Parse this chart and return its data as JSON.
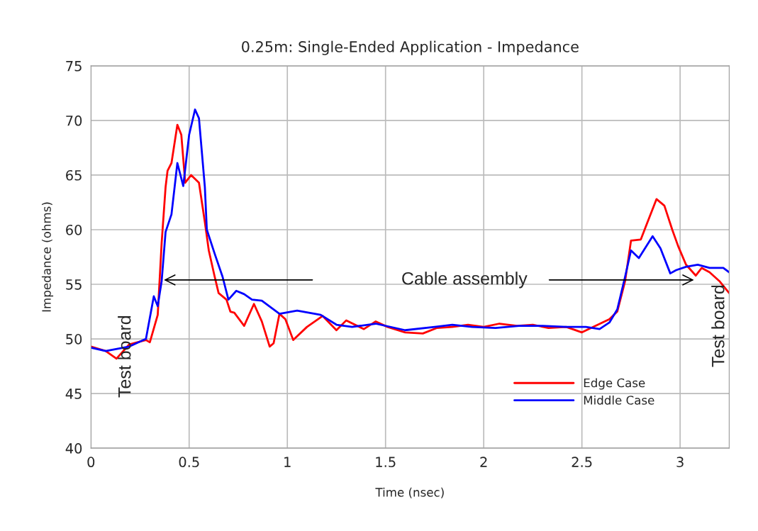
{
  "chart_data": {
    "type": "line",
    "title": "0.25m: Single-Ended Application - Impedance",
    "xlabel": "Time (nsec)",
    "ylabel": "Impedance (ohms)",
    "xlim": [
      0,
      3.25
    ],
    "xticks": [
      0,
      0.5,
      1,
      1.5,
      2,
      2.5,
      3
    ],
    "ylim": [
      40,
      75
    ],
    "yticks": [
      40,
      45,
      50,
      55,
      60,
      65,
      70,
      75
    ],
    "grid": true,
    "legend": "bottom right",
    "line_style": "solid",
    "annotations": [
      "Cable assembly",
      "Test board",
      "Test board"
    ],
    "series": [
      {
        "name": "Edge Case",
        "color": "#ff0000",
        "x": [
          0,
          0.075,
          0.13,
          0.195,
          0.28,
          0.3,
          0.34,
          0.36,
          0.38,
          0.39,
          0.41,
          0.44,
          0.46,
          0.48,
          0.51,
          0.55,
          0.58,
          0.6,
          0.63,
          0.65,
          0.69,
          0.71,
          0.73,
          0.78,
          0.83,
          0.87,
          0.91,
          0.93,
          0.96,
          0.99,
          1.03,
          1.1,
          1.18,
          1.25,
          1.3,
          1.39,
          1.45,
          1.51,
          1.6,
          1.69,
          1.76,
          1.84,
          1.92,
          2.0,
          2.08,
          2.17,
          2.25,
          2.33,
          2.42,
          2.5,
          2.57,
          2.64,
          2.68,
          2.72,
          2.75,
          2.8,
          2.83,
          2.88,
          2.92,
          2.96,
          2.99,
          3.03,
          3.08,
          3.11,
          3.15,
          3.2,
          3.25
        ],
        "values": [
          49.3,
          48.9,
          48.2,
          49.5,
          49.9,
          49.7,
          52.2,
          58.8,
          63.9,
          65.4,
          66.1,
          69.6,
          68.7,
          64.3,
          65.0,
          64.3,
          60.7,
          58.1,
          55.7,
          54.2,
          53.6,
          52.5,
          52.4,
          51.2,
          53.2,
          51.6,
          49.3,
          49.6,
          52.3,
          51.8,
          49.9,
          51.1,
          52.1,
          50.8,
          51.7,
          50.9,
          51.6,
          51.1,
          50.6,
          50.5,
          51.0,
          51.1,
          51.3,
          51.1,
          51.4,
          51.2,
          51.3,
          51.0,
          51.1,
          50.6,
          51.2,
          51.8,
          52.5,
          55.3,
          59.0,
          59.1,
          60.5,
          62.8,
          62.2,
          60.0,
          58.5,
          56.8,
          55.8,
          56.5,
          56.1,
          55.3,
          54.2
        ]
      },
      {
        "name": "Middle Case",
        "color": "#0000ff",
        "x": [
          0,
          0.075,
          0.195,
          0.28,
          0.32,
          0.34,
          0.36,
          0.38,
          0.41,
          0.44,
          0.47,
          0.5,
          0.53,
          0.55,
          0.58,
          0.59,
          0.63,
          0.67,
          0.7,
          0.74,
          0.78,
          0.82,
          0.87,
          0.96,
          1.05,
          1.17,
          1.25,
          1.33,
          1.45,
          1.6,
          1.75,
          1.84,
          1.94,
          2.06,
          2.18,
          2.3,
          2.42,
          2.52,
          2.59,
          2.64,
          2.68,
          2.72,
          2.75,
          2.79,
          2.86,
          2.9,
          2.95,
          2.98,
          3.03,
          3.09,
          3.15,
          3.22,
          3.25
        ],
        "values": [
          49.2,
          48.9,
          49.3,
          50.0,
          53.9,
          53.0,
          55.3,
          59.8,
          61.4,
          66.1,
          64.0,
          68.7,
          71.0,
          70.2,
          63.9,
          60.0,
          57.8,
          55.7,
          53.6,
          54.4,
          54.1,
          53.6,
          53.5,
          52.3,
          52.6,
          52.2,
          51.3,
          51.1,
          51.4,
          50.8,
          51.1,
          51.3,
          51.1,
          51.0,
          51.2,
          51.2,
          51.1,
          51.1,
          50.9,
          51.5,
          52.7,
          55.7,
          58.1,
          57.4,
          59.4,
          58.3,
          56.0,
          56.3,
          56.6,
          56.8,
          56.5,
          56.5,
          56.1
        ]
      }
    ]
  }
}
